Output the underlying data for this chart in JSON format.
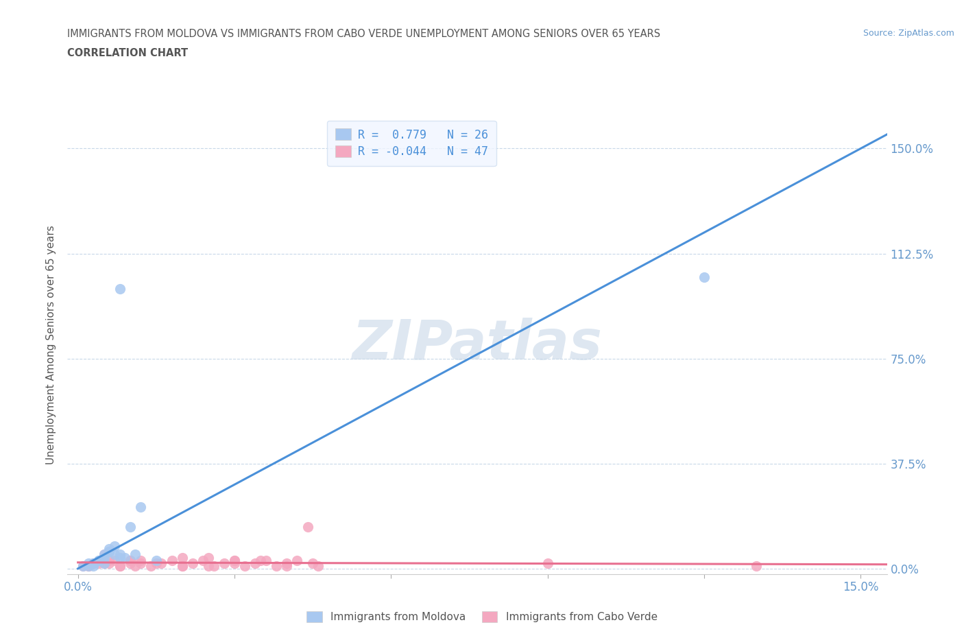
{
  "title_line1": "IMMIGRANTS FROM MOLDOVA VS IMMIGRANTS FROM CABO VERDE UNEMPLOYMENT AMONG SENIORS OVER 65 YEARS",
  "title_line2": "CORRELATION CHART",
  "source_text": "Source: ZipAtlas.com",
  "ylabel": "Unemployment Among Seniors over 65 years",
  "xlim": [
    -0.002,
    0.155
  ],
  "ylim": [
    -0.02,
    1.62
  ],
  "yticks": [
    0.0,
    0.375,
    0.75,
    1.125,
    1.5
  ],
  "ytick_labels": [
    "0.0%",
    "37.5%",
    "75.0%",
    "112.5%",
    "150.0%"
  ],
  "xticks": [
    0.0,
    0.03,
    0.06,
    0.09,
    0.12,
    0.15
  ],
  "xtick_labels": [
    "0.0%",
    "",
    "",
    "",
    "",
    "15.0%"
  ],
  "moldova_color": "#a8c8f0",
  "cabo_verde_color": "#f4a8c0",
  "moldova_line_color": "#4a90d9",
  "cabo_verde_line_color": "#e87090",
  "grid_color": "#c8d8e8",
  "title_color": "#555555",
  "tick_label_color": "#6699cc",
  "watermark_color": "#c8d8e8",
  "watermark_text": "ZIPatlas",
  "legend_R_moldova": "R =  0.779",
  "legend_N_moldova": "N = 26",
  "legend_R_cabo": "R = -0.044",
  "legend_N_cabo": "N = 47",
  "moldova_scatter_x": [
    0.005,
    0.008,
    0.003,
    0.002,
    0.01,
    0.012,
    0.004,
    0.006,
    0.007,
    0.009,
    0.011,
    0.003,
    0.015,
    0.005,
    0.007,
    0.008,
    0.006,
    0.004,
    0.002,
    0.001,
    0.005,
    0.003,
    0.008,
    0.12,
    0.004,
    0.006
  ],
  "moldova_scatter_y": [
    0.05,
    0.04,
    0.02,
    0.01,
    0.15,
    0.22,
    0.03,
    0.06,
    0.08,
    0.04,
    0.05,
    0.01,
    0.03,
    0.02,
    0.05,
    1.0,
    0.07,
    0.03,
    0.02,
    0.01,
    0.04,
    0.02,
    0.05,
    1.04,
    0.03,
    0.06
  ],
  "cabo_verde_scatter_x": [
    0.005,
    0.008,
    0.01,
    0.012,
    0.02,
    0.025,
    0.03,
    0.035,
    0.04,
    0.045,
    0.005,
    0.01,
    0.015,
    0.02,
    0.025,
    0.03,
    0.002,
    0.004,
    0.006,
    0.008,
    0.01,
    0.012,
    0.014,
    0.016,
    0.018,
    0.02,
    0.022,
    0.024,
    0.026,
    0.028,
    0.03,
    0.032,
    0.034,
    0.036,
    0.038,
    0.04,
    0.042,
    0.044,
    0.046,
    0.003,
    0.007,
    0.011,
    0.09,
    0.002,
    0.006,
    0.13,
    0.001
  ],
  "cabo_verde_scatter_y": [
    0.02,
    0.01,
    0.03,
    0.02,
    0.01,
    0.04,
    0.02,
    0.03,
    0.01,
    0.02,
    0.05,
    0.03,
    0.02,
    0.04,
    0.01,
    0.03,
    0.01,
    0.02,
    0.03,
    0.01,
    0.02,
    0.03,
    0.01,
    0.02,
    0.03,
    0.01,
    0.02,
    0.03,
    0.01,
    0.02,
    0.03,
    0.01,
    0.02,
    0.03,
    0.01,
    0.02,
    0.03,
    0.15,
    0.01,
    0.02,
    0.03,
    0.01,
    0.02,
    0.01,
    0.02,
    0.01,
    0.01
  ],
  "moldova_trendline_x": [
    0.0,
    0.155
  ],
  "moldova_trendline_y": [
    0.0,
    1.55
  ],
  "cabo_verde_trendline_x": [
    0.0,
    0.155
  ],
  "cabo_verde_trendline_y": [
    0.022,
    0.015
  ],
  "legend_box_color": "#f0f5ff",
  "legend_border_color": "#d0dff0",
  "background_color": "#ffffff",
  "legend_bottom_labels": [
    "Immigrants from Moldova",
    "Immigrants from Cabo Verde"
  ]
}
